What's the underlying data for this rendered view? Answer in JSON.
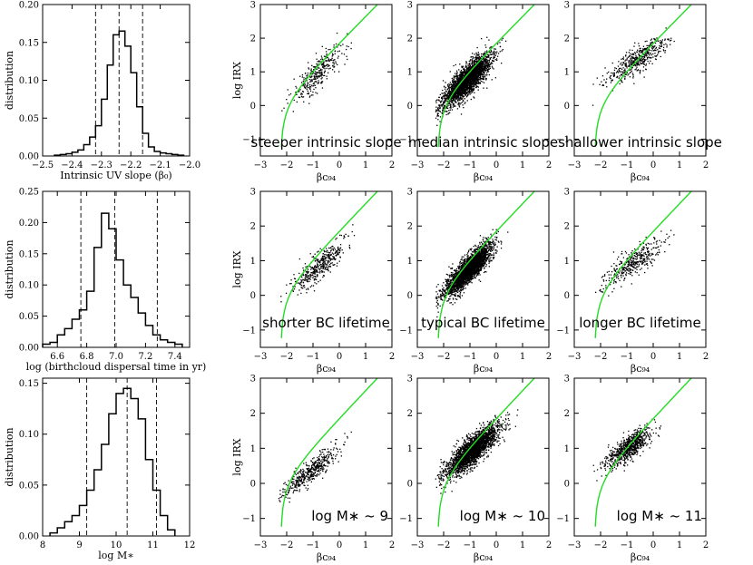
{
  "colors": {
    "relation_curve": "#22dd22",
    "points": "#000000",
    "histogram": "#000000"
  },
  "chart_data": [
    {
      "id": "hist-beta0",
      "type": "histogram",
      "xlabel": "Intrinsic UV slope (β0)",
      "ylabel": "distribution",
      "xlim": [
        -2.5,
        -2.0
      ],
      "ylim": [
        0,
        0.2
      ],
      "xticks": [
        "-2.5",
        "-2.4",
        "-2.3",
        "-2.2",
        "-2.1",
        "-2.0"
      ],
      "yticks": [
        "0.00",
        "0.05",
        "0.10",
        "0.15",
        "0.20"
      ],
      "bin_edges": [
        -2.46,
        -2.44,
        -2.42,
        -2.4,
        -2.38,
        -2.36,
        -2.34,
        -2.32,
        -2.3,
        -2.28,
        -2.26,
        -2.24,
        -2.22,
        -2.2,
        -2.18,
        -2.16,
        -2.14,
        -2.12,
        -2.1,
        -2.08,
        -2.06,
        -2.04,
        -2.02
      ],
      "values": [
        0.001,
        0.002,
        0.003,
        0.005,
        0.008,
        0.015,
        0.025,
        0.04,
        0.075,
        0.12,
        0.16,
        0.165,
        0.145,
        0.11,
        0.065,
        0.03,
        0.012,
        0.006,
        0.004,
        0.003,
        0.002,
        0.001
      ],
      "reference_lines": [
        -2.32,
        -2.24,
        -2.16
      ]
    },
    {
      "id": "hist-birthcloud",
      "type": "histogram",
      "xlabel": "log (birthcloud dispersal time in yr)",
      "ylabel": "distribution",
      "xlim": [
        6.5,
        7.5
      ],
      "ylim": [
        0,
        0.25
      ],
      "xticks": [
        "6.6",
        "6.8",
        "7.0",
        "7.2",
        "7.4"
      ],
      "yticks": [
        "0.00",
        "0.05",
        "0.10",
        "0.15",
        "0.20",
        "0.25"
      ],
      "bin_edges": [
        6.5,
        6.55,
        6.6,
        6.65,
        6.7,
        6.75,
        6.8,
        6.85,
        6.9,
        6.95,
        7.0,
        7.05,
        7.1,
        7.15,
        7.2,
        7.25,
        7.3,
        7.35,
        7.4,
        7.45
      ],
      "values": [
        0.005,
        0.008,
        0.02,
        0.03,
        0.045,
        0.06,
        0.09,
        0.16,
        0.215,
        0.19,
        0.14,
        0.1,
        0.08,
        0.055,
        0.035,
        0.02,
        0.012,
        0.008,
        0.005
      ],
      "reference_lines": [
        6.76,
        6.99,
        7.28
      ]
    },
    {
      "id": "hist-mass",
      "type": "histogram",
      "xlabel": "log M*",
      "ylabel": "distribution",
      "xlim": [
        8,
        12
      ],
      "ylim": [
        0,
        0.155
      ],
      "xticks": [
        "8",
        "9",
        "10",
        "11",
        "12"
      ],
      "yticks": [
        "0.00",
        "0.05",
        "0.10",
        "0.15"
      ],
      "bin_edges": [
        8.2,
        8.4,
        8.6,
        8.8,
        9.0,
        9.2,
        9.4,
        9.6,
        9.8,
        10.0,
        10.2,
        10.4,
        10.6,
        10.8,
        11.0,
        11.2,
        11.4,
        11.6
      ],
      "values": [
        0.003,
        0.008,
        0.014,
        0.02,
        0.03,
        0.045,
        0.065,
        0.09,
        0.12,
        0.14,
        0.145,
        0.135,
        0.115,
        0.075,
        0.045,
        0.02,
        0.006
      ],
      "reference_lines": [
        9.2,
        10.3,
        11.1
      ]
    },
    {
      "id": "sc-r1c1",
      "type": "scatter",
      "annotation": "steeper intrinsic slope",
      "ylabel": "log IRX",
      "xlabel": "βC94",
      "n_points": 320,
      "center": [
        -0.8,
        1.0
      ],
      "spread": [
        0.45,
        0.45
      ],
      "tilt": 0.7
    },
    {
      "id": "sc-r1c2",
      "type": "scatter",
      "annotation": "median intrinsic slope",
      "xlabel": "βC94",
      "n_points": 2600,
      "center": [
        -1.1,
        0.75
      ],
      "spread": [
        0.45,
        0.4
      ],
      "tilt": 0.7
    },
    {
      "id": "sc-r1c3",
      "type": "scatter",
      "annotation": "shallower intrinsic slope",
      "xlabel": "βC94",
      "n_points": 480,
      "center": [
        -0.6,
        1.35
      ],
      "spread": [
        0.55,
        0.35
      ],
      "tilt": 0.5
    },
    {
      "id": "sc-r2c1",
      "type": "scatter",
      "annotation": "shorter BC lifetime",
      "ylabel": "log IRX",
      "xlabel": "βC94",
      "n_points": 420,
      "center": [
        -0.75,
        0.85
      ],
      "spread": [
        0.5,
        0.35
      ],
      "tilt": 0.6
    },
    {
      "id": "sc-r2c2",
      "type": "scatter",
      "annotation": "typical BC lifetime",
      "xlabel": "βC94",
      "n_points": 2600,
      "center": [
        -1.05,
        0.75
      ],
      "spread": [
        0.45,
        0.35
      ],
      "tilt": 0.7
    },
    {
      "id": "sc-r2c3",
      "type": "scatter",
      "annotation": "longer BC lifetime",
      "xlabel": "βC94",
      "n_points": 380,
      "center": [
        -0.75,
        0.95
      ],
      "spread": [
        0.55,
        0.35
      ],
      "tilt": 0.5
    },
    {
      "id": "sc-r3c1",
      "type": "scatter",
      "annotation": "log M* ~ 9",
      "ylabel": "log IRX",
      "xlabel": "βC94",
      "n_points": 460,
      "center": [
        -1.1,
        0.35
      ],
      "spread": [
        0.5,
        0.3
      ],
      "tilt": 0.6
    },
    {
      "id": "sc-r3c2",
      "type": "scatter",
      "annotation": "log M* ~ 10",
      "xlabel": "βC94",
      "n_points": 2500,
      "center": [
        -0.9,
        0.95
      ],
      "spread": [
        0.5,
        0.35
      ],
      "tilt": 0.6
    },
    {
      "id": "sc-r3c3",
      "type": "scatter",
      "annotation": "log M* ~ 11",
      "xlabel": "βC94",
      "n_points": 720,
      "center": [
        -0.95,
        1.0
      ],
      "spread": [
        0.45,
        0.3
      ],
      "tilt": 0.5
    }
  ],
  "scatter_axes": {
    "xlim": [
      -3,
      2
    ],
    "ylim": [
      -1.5,
      3
    ],
    "xticks": [
      "-3",
      "-2",
      "-1",
      "0",
      "1",
      "2"
    ],
    "yticks": [
      "-1",
      "0",
      "1",
      "2",
      "3"
    ],
    "relation": "log IRX = log10(10^(0.4*(4.43+1.99*beta)) - 1) + 0.076"
  }
}
